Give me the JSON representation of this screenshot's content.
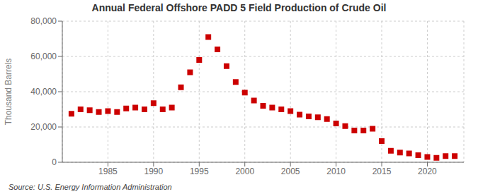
{
  "chart_data": {
    "type": "scatter",
    "title": "Annual Federal Offshore PADD 5 Field Production of Crude Oil",
    "ylabel": "Thousand Barrels",
    "source": "Source: U.S. Energy Information Administration",
    "color": "#CC0000",
    "marker": "square",
    "grid": true,
    "x": [
      1981,
      1982,
      1983,
      1984,
      1985,
      1986,
      1987,
      1988,
      1989,
      1990,
      1991,
      1992,
      1993,
      1994,
      1995,
      1996,
      1997,
      1998,
      1999,
      2000,
      2001,
      2002,
      2003,
      2004,
      2005,
      2006,
      2007,
      2008,
      2009,
      2010,
      2011,
      2012,
      2013,
      2014,
      2015,
      2016,
      2017,
      2018,
      2019,
      2020,
      2021,
      2022,
      2023
    ],
    "values": [
      27500,
      30000,
      29500,
      28500,
      29000,
      28500,
      30500,
      31000,
      30000,
      33500,
      30000,
      31000,
      42500,
      51000,
      58000,
      71000,
      64000,
      54500,
      45500,
      39500,
      35000,
      32000,
      31000,
      30000,
      29000,
      27000,
      26000,
      25500,
      24500,
      22000,
      20500,
      18000,
      18000,
      19000,
      12000,
      6500,
      5500,
      5000,
      4000,
      3000,
      2500,
      3500,
      3500
    ],
    "xlim": [
      1980,
      2024
    ],
    "ylim": [
      0,
      80000
    ],
    "xticks": [
      1985,
      1990,
      1995,
      2000,
      2005,
      2010,
      2015,
      2020
    ],
    "yticks": [
      0,
      {
        "value": 20000,
        "label": "20,000"
      },
      {
        "value": 40000,
        "label": "40,000"
      },
      {
        "value": 60000,
        "label": "60,000"
      },
      {
        "value": 80000,
        "label": "80,000"
      }
    ]
  }
}
